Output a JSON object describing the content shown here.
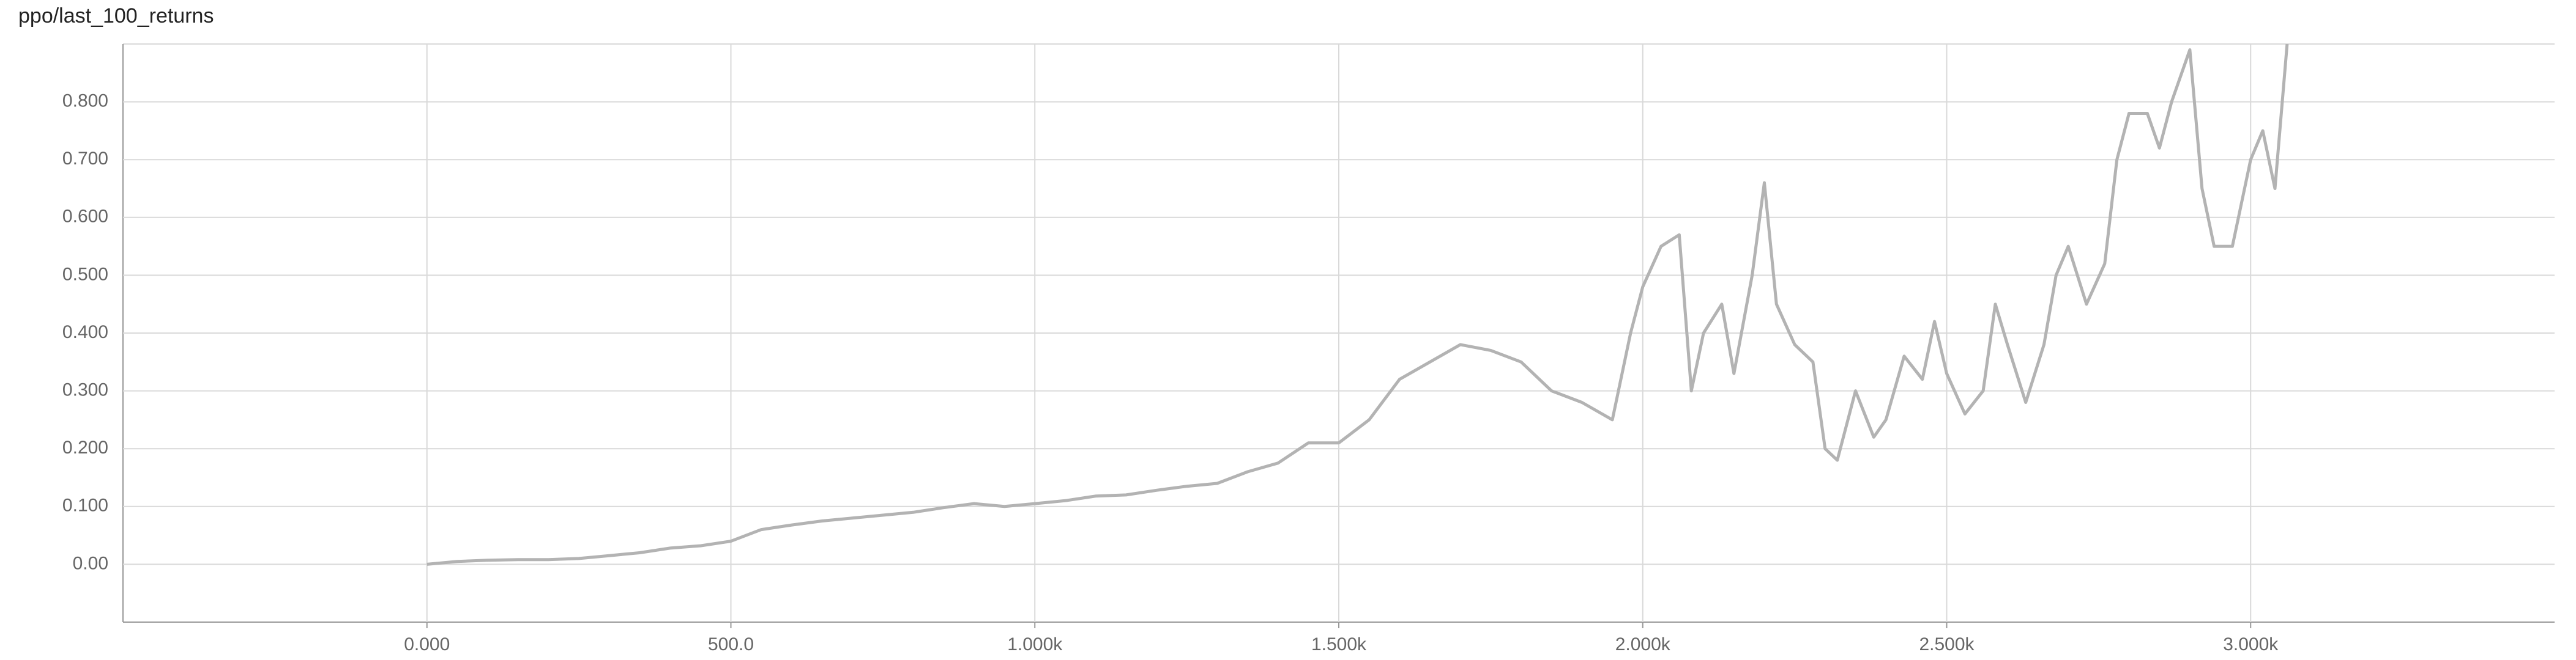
{
  "chart_data": {
    "type": "line",
    "title": "ppo/last_100_returns",
    "x": [
      0,
      50,
      100,
      150,
      200,
      250,
      300,
      350,
      400,
      450,
      500,
      550,
      600,
      650,
      700,
      750,
      800,
      850,
      900,
      950,
      1000,
      1050,
      1100,
      1150,
      1200,
      1250,
      1300,
      1350,
      1400,
      1450,
      1500,
      1550,
      1600,
      1650,
      1700,
      1750,
      1800,
      1850,
      1900,
      1950,
      1980,
      2000,
      2030,
      2060,
      2080,
      2100,
      2130,
      2150,
      2180,
      2200,
      2220,
      2250,
      2280,
      2300,
      2320,
      2350,
      2380,
      2400,
      2430,
      2460,
      2480,
      2500,
      2530,
      2560,
      2580,
      2600,
      2630,
      2660,
      2680,
      2700,
      2730,
      2760,
      2780,
      2800,
      2830,
      2850,
      2870,
      2900,
      2920,
      2940,
      2970,
      3000,
      3020,
      3040,
      3060
    ],
    "series": [
      {
        "color": "#b3b3b3",
        "values": [
          0.0,
          0.005,
          0.007,
          0.008,
          0.008,
          0.01,
          0.015,
          0.02,
          0.028,
          0.032,
          0.04,
          0.06,
          0.068,
          0.075,
          0.08,
          0.085,
          0.09,
          0.098,
          0.105,
          0.1,
          0.105,
          0.11,
          0.118,
          0.12,
          0.128,
          0.135,
          0.14,
          0.16,
          0.175,
          0.21,
          0.21,
          0.25,
          0.32,
          0.35,
          0.38,
          0.37,
          0.35,
          0.3,
          0.28,
          0.25,
          0.4,
          0.48,
          0.55,
          0.57,
          0.3,
          0.4,
          0.45,
          0.33,
          0.5,
          0.66,
          0.45,
          0.38,
          0.35,
          0.2,
          0.18,
          0.3,
          0.22,
          0.25,
          0.36,
          0.32,
          0.42,
          0.33,
          0.26,
          0.3,
          0.45,
          0.38,
          0.28,
          0.38,
          0.5,
          0.55,
          0.45,
          0.52,
          0.7,
          0.78,
          0.78,
          0.72,
          0.8,
          0.89,
          0.65,
          0.55,
          0.55,
          0.7,
          0.75,
          0.65,
          0.9
        ]
      }
    ],
    "xlim": [
      -500,
      3500
    ],
    "xticks": [
      {
        "value": 0,
        "label": "0.000"
      },
      {
        "value": 500,
        "label": "500.0"
      },
      {
        "value": 1000,
        "label": "1.000k"
      },
      {
        "value": 1500,
        "label": "1.500k"
      },
      {
        "value": 2000,
        "label": "2.000k"
      },
      {
        "value": 2500,
        "label": "2.500k"
      },
      {
        "value": 3000,
        "label": "3.000k"
      }
    ],
    "ylim": [
      -0.1,
      0.9
    ],
    "yticks": [
      {
        "value": 0,
        "label": "0.00"
      },
      {
        "value": 0.1,
        "label": "0.100"
      },
      {
        "value": 0.2,
        "label": "0.200"
      },
      {
        "value": 0.3,
        "label": "0.300"
      },
      {
        "value": 0.4,
        "label": "0.400"
      },
      {
        "value": 0.5,
        "label": "0.500"
      },
      {
        "value": 0.6,
        "label": "0.600"
      },
      {
        "value": 0.7,
        "label": "0.700"
      },
      {
        "value": 0.8,
        "label": "0.800"
      }
    ],
    "grid": true
  }
}
